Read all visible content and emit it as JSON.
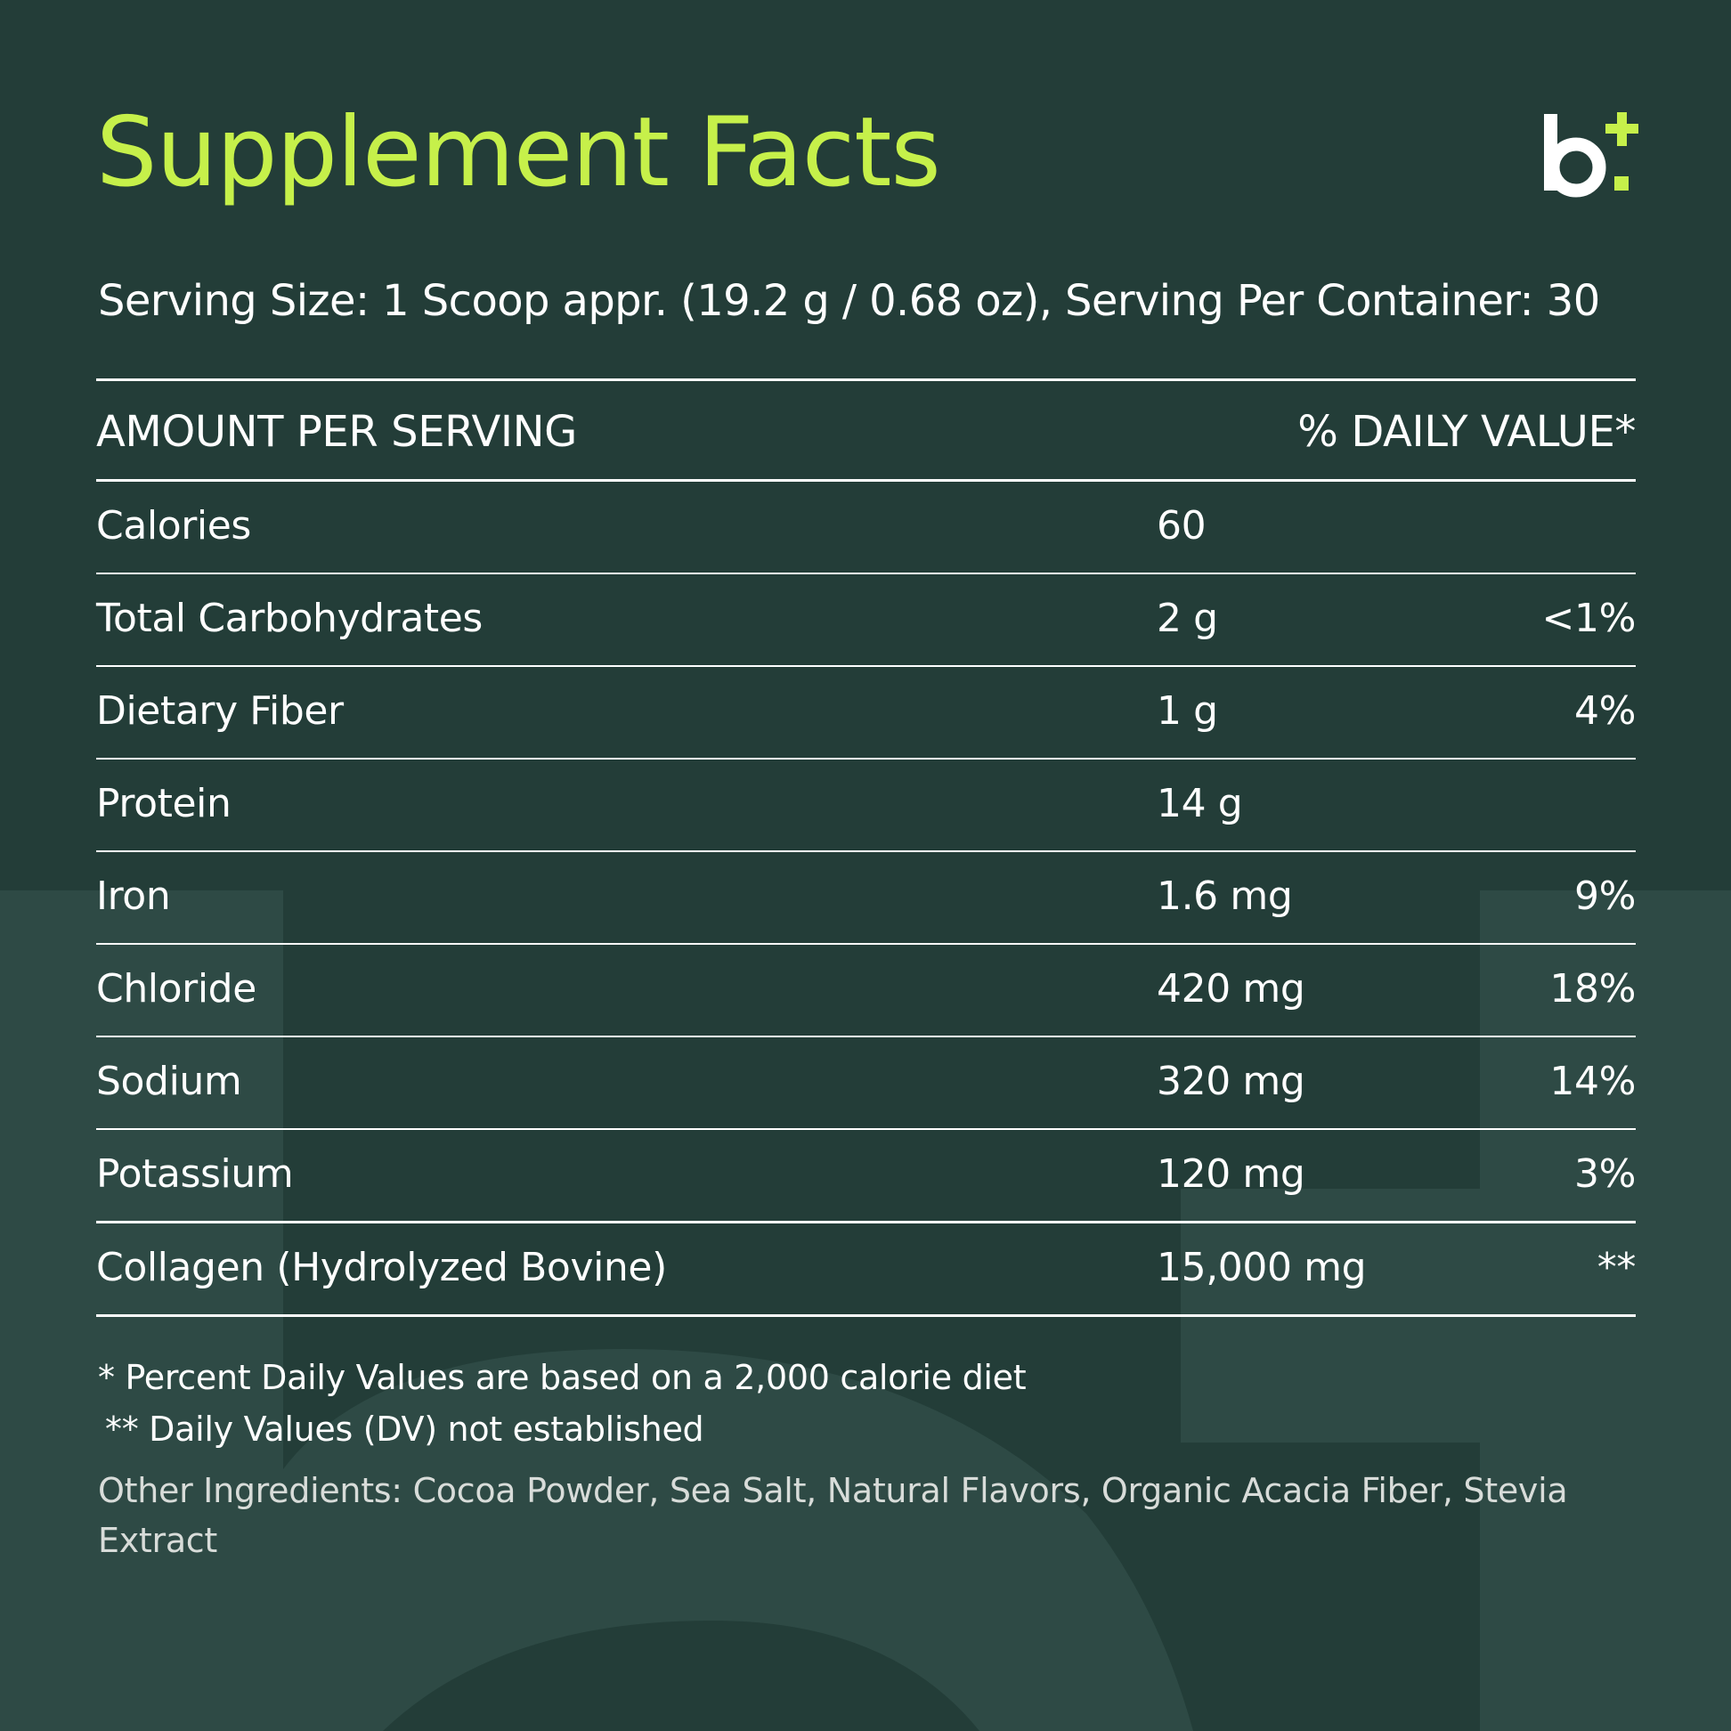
{
  "title": "Supplement Facts",
  "brand": {
    "logo_icon": "b-plus-logo-icon",
    "logo_letter": "b",
    "accent_color": "#c6f04a"
  },
  "serving_line": "Serving Size: 1 Scoop appr. (19.2 g / 0.68 oz), Serving Per Container: 30",
  "table": {
    "header_left": "AMOUNT PER SERVING",
    "header_right": "% DAILY VALUE*",
    "rows": [
      {
        "name": "Calories",
        "amount": "60",
        "dv": ""
      },
      {
        "name": "Total Carbohydrates",
        "amount": "2 g",
        "dv": "<1%"
      },
      {
        "name": "Dietary Fiber",
        "amount": "1 g",
        "dv": "4%"
      },
      {
        "name": "Protein",
        "amount": "14 g",
        "dv": ""
      },
      {
        "name": "Iron",
        "amount": "1.6 mg",
        "dv": "9%"
      },
      {
        "name": "Chloride",
        "amount": "420 mg",
        "dv": "18%"
      },
      {
        "name": "Sodium",
        "amount": "320 mg",
        "dv": "14%"
      },
      {
        "name": "Potassium",
        "amount": "120 mg",
        "dv": "3%"
      },
      {
        "name": "Collagen (Hydrolyzed Bovine)",
        "amount": "15,000 mg",
        "dv": "**"
      }
    ]
  },
  "footnotes": {
    "note1": "* Percent Daily Values are based on a 2,000 calorie diet",
    "note2": "** Daily Values (DV) not established"
  },
  "other_ingredients": "Other Ingredients: Cocoa Powder, Sea Salt, Natural Flavors, Organic Acacia Fiber, Stevia Extract",
  "colors": {
    "background": "#233d38",
    "shape": "#2e4a45",
    "text": "#ffffff"
  }
}
